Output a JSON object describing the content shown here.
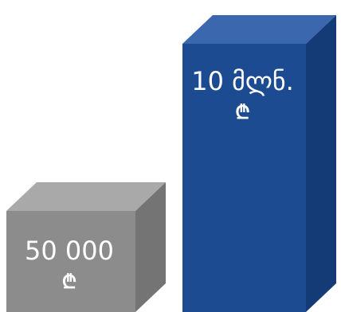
{
  "chart_data": {
    "type": "bar",
    "categories": [
      "",
      ""
    ],
    "values": [
      50000,
      10000000
    ],
    "value_labels": [
      "50 000",
      "10 მლნ."
    ],
    "unit_symbol": "₾",
    "style": "3d-cuboid",
    "colors": {
      "bar_1": {
        "front": "#8c8c8c",
        "top": "#a9a9a9",
        "side": "#747474"
      },
      "bar_2": {
        "front": "#1d4b91",
        "top": "#3a67ad",
        "side": "#153b76"
      }
    }
  }
}
